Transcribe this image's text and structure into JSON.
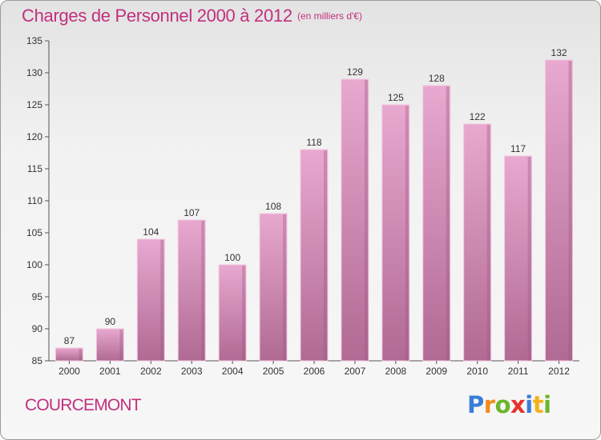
{
  "header": {
    "title": "Charges de Personnel 2000 à 2012",
    "subtitle": "(en milliers d'€)"
  },
  "footer": {
    "commune": "COURCEMONT",
    "brand_letters": [
      {
        "char": "P",
        "color": "#3a7dd8"
      },
      {
        "char": "r",
        "color": "#f28a1a"
      },
      {
        "char": "o",
        "color": "#6cb52d"
      },
      {
        "char": "x",
        "color": "#e5332a"
      },
      {
        "char": "i",
        "color": "#3a7dd8"
      },
      {
        "char": "t",
        "color": "#f2b21a"
      },
      {
        "char": "i",
        "color": "#6cb52d"
      }
    ]
  },
  "colors": {
    "bar_top": "#e8a8cf",
    "bar_bottom": "#b06a93",
    "bar_edge": "#f2c6de",
    "axis": "#555555",
    "text": "#333333",
    "accent": "#c0307d"
  },
  "chart_data": {
    "type": "bar",
    "categories": [
      "2000",
      "2001",
      "2002",
      "2003",
      "2004",
      "2005",
      "2006",
      "2007",
      "2008",
      "2009",
      "2010",
      "2011",
      "2012"
    ],
    "values": [
      87,
      90,
      104,
      107,
      100,
      108,
      118,
      129,
      125,
      128,
      122,
      117,
      132
    ],
    "ylim": [
      85,
      135
    ],
    "yticks": [
      85,
      90,
      95,
      100,
      105,
      110,
      115,
      120,
      125,
      130,
      135
    ],
    "grid": false,
    "data_labels": true
  }
}
